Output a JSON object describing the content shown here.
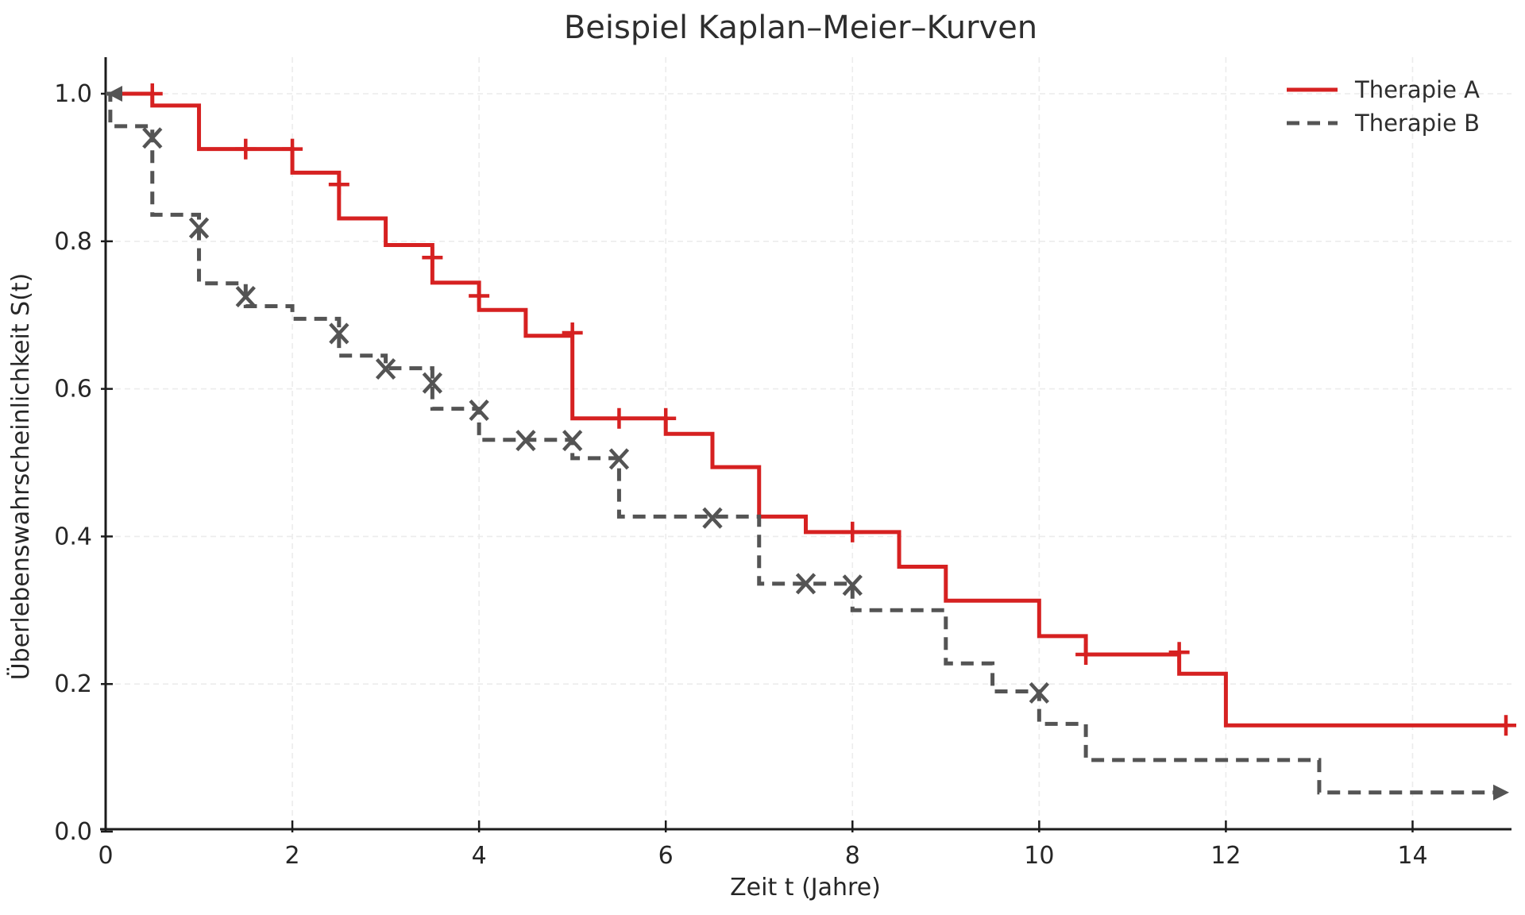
{
  "chart_data": {
    "type": "line",
    "subtype": "kaplan-meier-step",
    "title": "Beispiel Kaplan–Meier–Kurven",
    "xlabel": "Zeit t (Jahre)",
    "ylabel": "Überlebenswahrscheinlichkeit S(t)",
    "xlim": [
      0,
      15
    ],
    "ylim": [
      0.0,
      1.0
    ],
    "xticks": [
      0,
      2,
      4,
      6,
      8,
      10,
      12,
      14
    ],
    "yticks": [
      0.0,
      0.2,
      0.4,
      0.6,
      0.8,
      1.0
    ],
    "grid": true,
    "legend_position": "upper right",
    "colors": {
      "therapie_a": "#d62121",
      "therapie_b": "#545454",
      "grid": "#ececec",
      "axis": "#1c1c1c",
      "text": "#262626"
    },
    "series": [
      {
        "name": "Therapie A",
        "color": "#d62121",
        "line_style": "solid",
        "marker": "plus",
        "start_arrow": false,
        "end_arrow": false,
        "end_time": 15,
        "steps": [
          [
            0,
            1.0
          ],
          [
            0.5,
            0.984
          ],
          [
            1,
            0.925
          ],
          [
            2,
            0.893
          ],
          [
            2.5,
            0.831
          ],
          [
            3,
            0.795
          ],
          [
            3.5,
            0.744
          ],
          [
            4,
            0.707
          ],
          [
            4.5,
            0.672
          ],
          [
            5,
            0.56
          ],
          [
            6,
            0.539
          ],
          [
            6.5,
            0.494
          ],
          [
            7,
            0.427
          ],
          [
            7.5,
            0.406
          ],
          [
            8.5,
            0.359
          ],
          [
            9,
            0.313
          ],
          [
            10,
            0.265
          ],
          [
            10.5,
            0.24
          ],
          [
            11.5,
            0.214
          ],
          [
            12,
            0.144
          ]
        ],
        "censor_marks": [
          [
            0.5,
            1.0
          ],
          [
            1.5,
            0.925
          ],
          [
            2.0,
            0.925
          ],
          [
            2.5,
            0.877
          ],
          [
            3.5,
            0.778
          ],
          [
            4.0,
            0.726
          ],
          [
            5.0,
            0.676
          ],
          [
            5.5,
            0.56
          ],
          [
            6.0,
            0.56
          ],
          [
            8.0,
            0.406
          ],
          [
            10.5,
            0.24
          ],
          [
            11.5,
            0.243
          ],
          [
            15.0,
            0.144
          ]
        ]
      },
      {
        "name": "Therapie B",
        "color": "#545454",
        "line_style": "dashed",
        "marker": "x",
        "start_arrow": true,
        "end_arrow": true,
        "end_time": 15,
        "steps": [
          [
            0,
            1.0
          ],
          [
            0.05,
            0.956
          ],
          [
            0.5,
            0.836
          ],
          [
            1,
            0.743
          ],
          [
            1.5,
            0.712
          ],
          [
            2,
            0.695
          ],
          [
            2.5,
            0.645
          ],
          [
            3,
            0.628
          ],
          [
            3.5,
            0.573
          ],
          [
            4,
            0.531
          ],
          [
            5,
            0.506
          ],
          [
            5.5,
            0.427
          ],
          [
            7,
            0.336
          ],
          [
            8,
            0.3
          ],
          [
            9,
            0.228
          ],
          [
            9.5,
            0.19
          ],
          [
            10,
            0.146
          ],
          [
            10.5,
            0.097
          ],
          [
            13,
            0.053
          ]
        ],
        "censor_marks": [
          [
            0.5,
            0.94
          ],
          [
            1.0,
            0.818
          ],
          [
            1.5,
            0.725
          ],
          [
            2.5,
            0.675
          ],
          [
            3.0,
            0.627
          ],
          [
            3.5,
            0.608
          ],
          [
            4.0,
            0.571
          ],
          [
            4.5,
            0.53
          ],
          [
            5.0,
            0.53
          ],
          [
            5.5,
            0.505
          ],
          [
            6.5,
            0.425
          ],
          [
            7.5,
            0.336
          ],
          [
            8.0,
            0.334
          ],
          [
            10.0,
            0.188
          ]
        ]
      }
    ]
  }
}
